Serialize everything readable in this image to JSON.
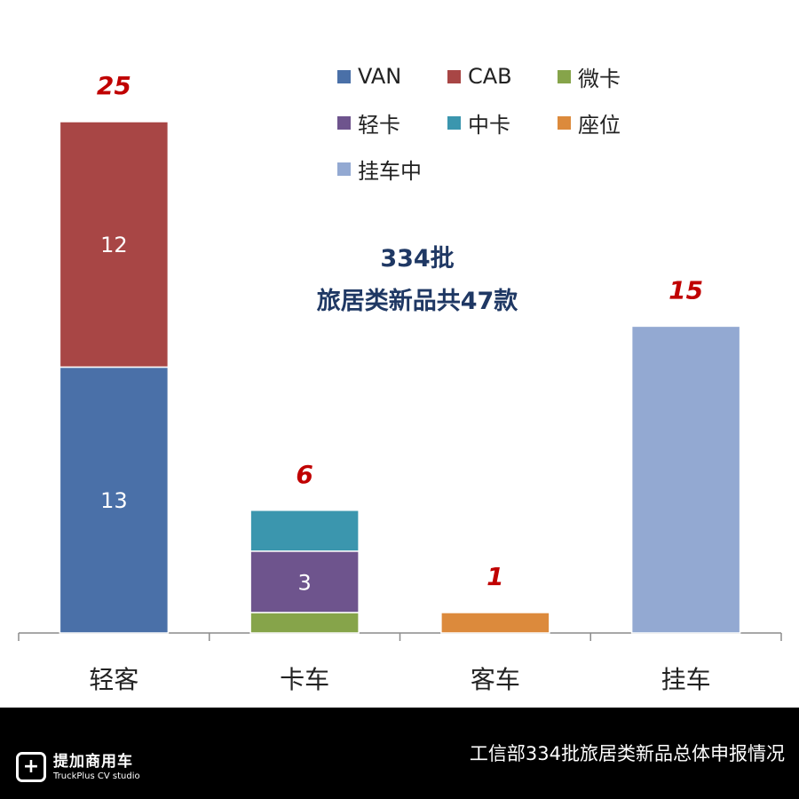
{
  "chart_data": {
    "type": "bar",
    "stacked": true,
    "categories": [
      "轻客",
      "卡车",
      "客车",
      "挂车"
    ],
    "series": [
      {
        "name": "VAN",
        "color": "#4a70a8",
        "values": [
          13,
          0,
          0,
          0
        ]
      },
      {
        "name": "CAB",
        "color": "#a84645",
        "values": [
          12,
          0,
          0,
          0
        ]
      },
      {
        "name": "微卡",
        "color": "#86a44a",
        "values": [
          0,
          1,
          0,
          0
        ]
      },
      {
        "name": "轻卡",
        "color": "#6e548d",
        "values": [
          0,
          3,
          0,
          0
        ]
      },
      {
        "name": "中卡",
        "color": "#3b96ae",
        "values": [
          0,
          2,
          0,
          0
        ]
      },
      {
        "name": "座位",
        "color": "#dc8a3c",
        "values": [
          0,
          0,
          1,
          0
        ]
      },
      {
        "name": "挂车中",
        "color": "#93a9d2",
        "values": [
          0,
          0,
          0,
          15
        ]
      }
    ],
    "segment_labels": {
      "0": [
        "13",
        "12"
      ],
      "1": [
        "",
        "3",
        ""
      ]
    },
    "totals": [
      "25",
      "6",
      "1",
      "15"
    ],
    "ylim": [
      0,
      25
    ],
    "grid": false,
    "legend_position": "top-right",
    "annotation": [
      "334批",
      "旅居类新品共47款"
    ]
  },
  "footer": {
    "logo_mark": "+",
    "logo_cn": "提加商用车",
    "logo_en": "TruckPlus CV studio",
    "caption": "工信部334批旅居类新品总体申报情况"
  },
  "colors": {
    "total_label": "#c00000",
    "annotation": "#1f3864",
    "footer_bg": "#000000"
  }
}
